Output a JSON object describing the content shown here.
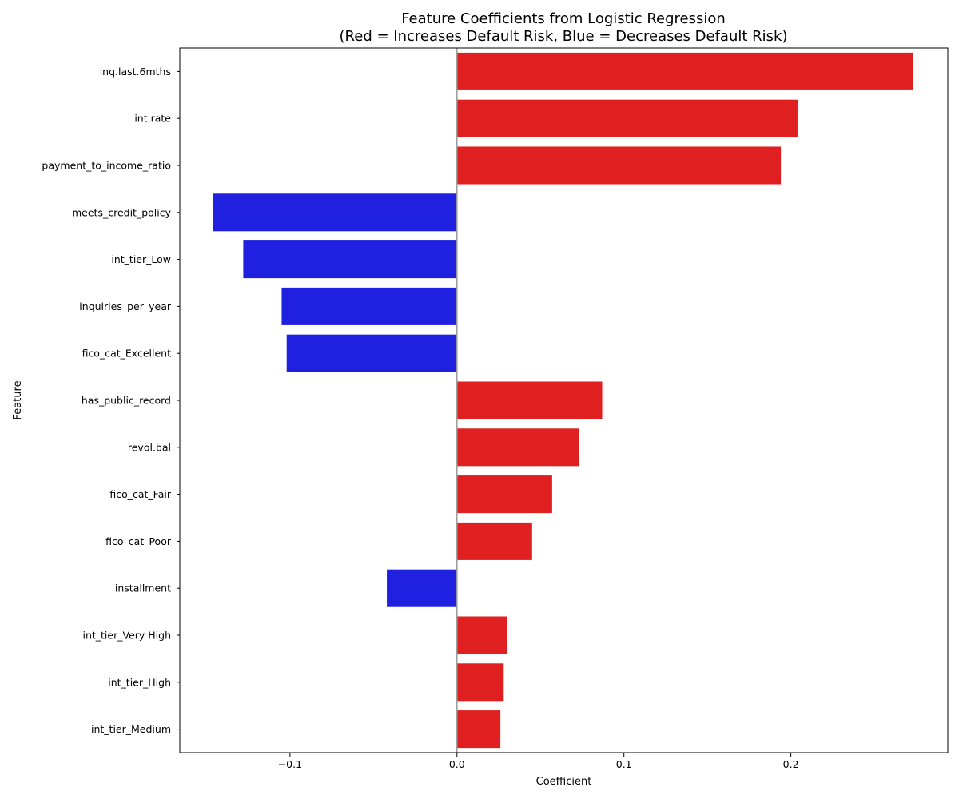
{
  "chart_data": {
    "type": "bar",
    "orientation": "horizontal",
    "title": "Feature Coefficients from Logistic Regression",
    "subtitle": "(Red = Increases Default Risk, Blue = Decreases Default Risk)",
    "xlabel": "Coefficient",
    "ylabel": "Feature",
    "xlim": [
      -0.166,
      0.294
    ],
    "xticks": [
      -0.1,
      0.0,
      0.1,
      0.2
    ],
    "xtick_labels": [
      "−0.1",
      "0.0",
      "0.1",
      "0.2"
    ],
    "grid": false,
    "colors": {
      "positive": "#e02020",
      "negative": "#2020e0",
      "zero_line": "#999999"
    },
    "categories": [
      "inq.last.6mths",
      "int.rate",
      "payment_to_income_ratio",
      "meets_credit_policy",
      "int_tier_Low",
      "inquiries_per_year",
      "fico_cat_Excellent",
      "has_public_record",
      "revol.bal",
      "fico_cat_Fair",
      "fico_cat_Poor",
      "installment",
      "int_tier_Very High",
      "int_tier_High",
      "int_tier_Medium"
    ],
    "values": [
      0.273,
      0.204,
      0.194,
      -0.146,
      -0.128,
      -0.105,
      -0.102,
      0.087,
      0.073,
      0.057,
      0.045,
      -0.042,
      0.03,
      0.028,
      0.026
    ]
  }
}
